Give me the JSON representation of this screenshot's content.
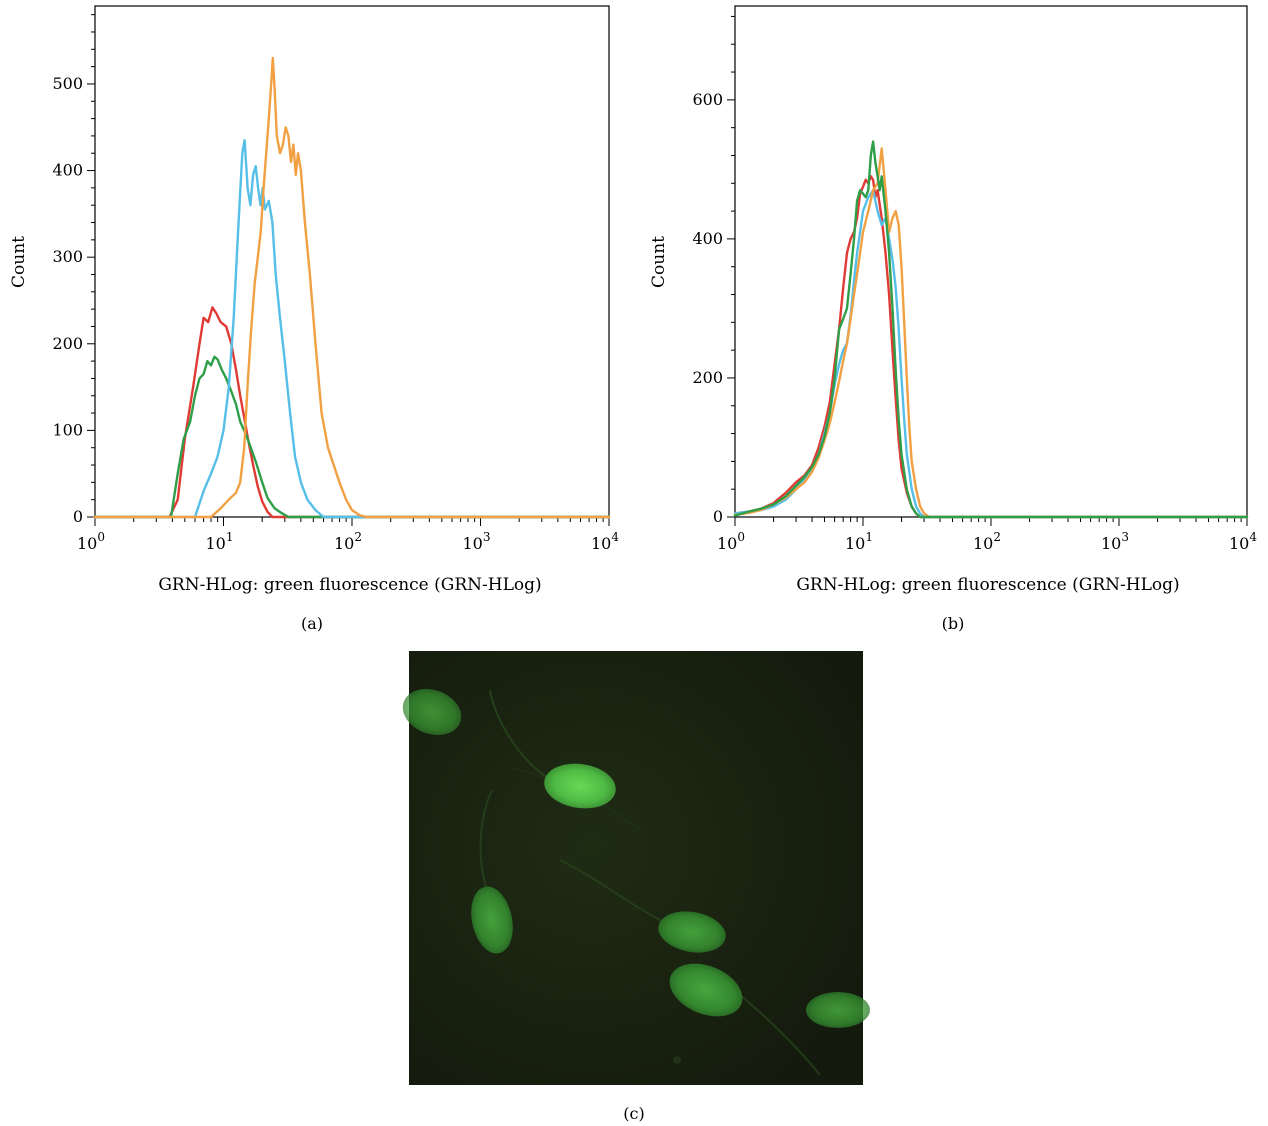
{
  "figure": {
    "panel_labels": {
      "a": "(a)",
      "b": "(b)",
      "c": "(c)"
    }
  },
  "series_colors": {
    "red": "#e03a34",
    "green": "#2f9e49",
    "blue": "#56bfe8",
    "orange": "#f2a142"
  },
  "microscopy": {
    "description_icon": "fluorescent-cells-image",
    "background_color": "#17200f",
    "cell_color": "#3fa23c"
  },
  "chart_data": [
    {
      "type": "line",
      "panel": "(a)",
      "xlabel": "GRN-HLog: green fluorescence (GRN-HLog)",
      "ylabel": "Count",
      "xscale": "log",
      "xlim": [
        1,
        10000
      ],
      "ylim": [
        0,
        590
      ],
      "x_ticks": [
        "0",
        "1",
        "2",
        "3",
        "4"
      ],
      "y_ticks": [
        0,
        100,
        200,
        300,
        400,
        500
      ],
      "grid": false,
      "series": [
        {
          "color_key": "red",
          "points": [
            [
              1,
              0
            ],
            [
              3.8,
              0
            ],
            [
              4.4,
              20
            ],
            [
              5,
              90
            ],
            [
              5.8,
              150
            ],
            [
              6.5,
              200
            ],
            [
              7,
              230
            ],
            [
              7.6,
              225
            ],
            [
              8.2,
              242
            ],
            [
              8.8,
              235
            ],
            [
              9.5,
              225
            ],
            [
              10.5,
              220
            ],
            [
              11.5,
              200
            ],
            [
              12.5,
              170
            ],
            [
              13.5,
              140
            ],
            [
              14.5,
              115
            ],
            [
              15.5,
              90
            ],
            [
              17,
              60
            ],
            [
              18.5,
              35
            ],
            [
              20,
              18
            ],
            [
              22,
              6
            ],
            [
              24,
              0
            ],
            [
              10000,
              0
            ]
          ]
        },
        {
          "color_key": "green",
          "points": [
            [
              1,
              0
            ],
            [
              3.9,
              0
            ],
            [
              4.4,
              50
            ],
            [
              4.9,
              90
            ],
            [
              5.5,
              110
            ],
            [
              6,
              140
            ],
            [
              6.5,
              160
            ],
            [
              7,
              165
            ],
            [
              7.5,
              180
            ],
            [
              8,
              175
            ],
            [
              8.5,
              185
            ],
            [
              9,
              182
            ],
            [
              9.7,
              170
            ],
            [
              10.5,
              160
            ],
            [
              11.5,
              145
            ],
            [
              12.5,
              130
            ],
            [
              13.5,
              110
            ],
            [
              15,
              95
            ],
            [
              16.5,
              78
            ],
            [
              18,
              62
            ],
            [
              20,
              40
            ],
            [
              22,
              22
            ],
            [
              25,
              10
            ],
            [
              28,
              5
            ],
            [
              32,
              0
            ],
            [
              10000,
              0
            ]
          ]
        },
        {
          "color_key": "blue",
          "points": [
            [
              1,
              0
            ],
            [
              6,
              0
            ],
            [
              7,
              30
            ],
            [
              8,
              50
            ],
            [
              9,
              70
            ],
            [
              10,
              100
            ],
            [
              11,
              150
            ],
            [
              12,
              230
            ],
            [
              13,
              330
            ],
            [
              14,
              420
            ],
            [
              14.6,
              435
            ],
            [
              15.4,
              380
            ],
            [
              16.2,
              360
            ],
            [
              17,
              395
            ],
            [
              17.8,
              405
            ],
            [
              18.6,
              380
            ],
            [
              19.4,
              360
            ],
            [
              20.2,
              380
            ],
            [
              21,
              355
            ],
            [
              22.5,
              365
            ],
            [
              24,
              340
            ],
            [
              25.5,
              280
            ],
            [
              27.5,
              230
            ],
            [
              30,
              180
            ],
            [
              33,
              120
            ],
            [
              36,
              70
            ],
            [
              40,
              40
            ],
            [
              45,
              20
            ],
            [
              52,
              8
            ],
            [
              60,
              0
            ],
            [
              10000,
              0
            ]
          ]
        },
        {
          "color_key": "orange",
          "points": [
            [
              1,
              0
            ],
            [
              8,
              0
            ],
            [
              9.5,
              10
            ],
            [
              11,
              20
            ],
            [
              12.5,
              28
            ],
            [
              13.5,
              40
            ],
            [
              14.5,
              80
            ],
            [
              15.5,
              160
            ],
            [
              16.5,
              220
            ],
            [
              17.5,
              270
            ],
            [
              18.5,
              300
            ],
            [
              19.5,
              330
            ],
            [
              20.5,
              380
            ],
            [
              21.5,
              420
            ],
            [
              22.5,
              460
            ],
            [
              23.5,
              500
            ],
            [
              24.2,
              530
            ],
            [
              25,
              495
            ],
            [
              26,
              440
            ],
            [
              27.5,
              420
            ],
            [
              29,
              430
            ],
            [
              30.5,
              450
            ],
            [
              32,
              440
            ],
            [
              33.5,
              410
            ],
            [
              35,
              430
            ],
            [
              36.5,
              395
            ],
            [
              38,
              420
            ],
            [
              40,
              400
            ],
            [
              43,
              340
            ],
            [
              47,
              280
            ],
            [
              52,
              200
            ],
            [
              58,
              120
            ],
            [
              65,
              80
            ],
            [
              72,
              60
            ],
            [
              80,
              40
            ],
            [
              90,
              20
            ],
            [
              100,
              8
            ],
            [
              115,
              2
            ],
            [
              130,
              0
            ],
            [
              10000,
              0
            ]
          ]
        }
      ]
    },
    {
      "type": "line",
      "panel": "(b)",
      "xlabel": "GRN-HLog: green fluorescence (GRN-HLog)",
      "ylabel": "Count",
      "xscale": "log",
      "xlim": [
        1,
        10000
      ],
      "ylim": [
        0,
        735
      ],
      "x_ticks": [
        "0",
        "1",
        "2",
        "3",
        "4"
      ],
      "y_ticks": [
        0,
        200,
        400,
        600
      ],
      "grid": false,
      "series": [
        {
          "color_key": "red",
          "points": [
            [
              1,
              5
            ],
            [
              1.3,
              8
            ],
            [
              1.6,
              12
            ],
            [
              2,
              20
            ],
            [
              2.5,
              35
            ],
            [
              3,
              50
            ],
            [
              3.5,
              60
            ],
            [
              4,
              75
            ],
            [
              4.5,
              100
            ],
            [
              5,
              130
            ],
            [
              5.5,
              165
            ],
            [
              6,
              220
            ],
            [
              6.5,
              270
            ],
            [
              7,
              330
            ],
            [
              7.5,
              380
            ],
            [
              8,
              400
            ],
            [
              8.5,
              410
            ],
            [
              9,
              430
            ],
            [
              9.5,
              465
            ],
            [
              10,
              475
            ],
            [
              10.5,
              485
            ],
            [
              11,
              480
            ],
            [
              11.5,
              490
            ],
            [
              12,
              485
            ],
            [
              12.5,
              460
            ],
            [
              13,
              470
            ],
            [
              14,
              430
            ],
            [
              15,
              380
            ],
            [
              16,
              320
            ],
            [
              17,
              240
            ],
            [
              18,
              170
            ],
            [
              19,
              110
            ],
            [
              20,
              70
            ],
            [
              22,
              35
            ],
            [
              24,
              15
            ],
            [
              26,
              5
            ],
            [
              28,
              0
            ],
            [
              10000,
              0
            ]
          ]
        },
        {
          "color_key": "blue",
          "points": [
            [
              1,
              5
            ],
            [
              1.3,
              8
            ],
            [
              1.6,
              10
            ],
            [
              2,
              15
            ],
            [
              2.5,
              25
            ],
            [
              3,
              40
            ],
            [
              3.5,
              55
            ],
            [
              4,
              70
            ],
            [
              4.5,
              90
            ],
            [
              5,
              120
            ],
            [
              5.5,
              150
            ],
            [
              6,
              190
            ],
            [
              6.5,
              220
            ],
            [
              7,
              240
            ],
            [
              7.5,
              250
            ],
            [
              8,
              290
            ],
            [
              8.5,
              340
            ],
            [
              9,
              380
            ],
            [
              9.5,
              410
            ],
            [
              10,
              440
            ],
            [
              11,
              460
            ],
            [
              12,
              470
            ],
            [
              12.5,
              455
            ],
            [
              13,
              440
            ],
            [
              14,
              420
            ],
            [
              15,
              430
            ],
            [
              16,
              400
            ],
            [
              17,
              370
            ],
            [
              18,
              330
            ],
            [
              19,
              270
            ],
            [
              20,
              200
            ],
            [
              21,
              140
            ],
            [
              22,
              90
            ],
            [
              24,
              40
            ],
            [
              26,
              15
            ],
            [
              28,
              5
            ],
            [
              30,
              0
            ],
            [
              10000,
              0
            ]
          ]
        },
        {
          "color_key": "orange",
          "points": [
            [
              1,
              3
            ],
            [
              1.3,
              6
            ],
            [
              1.6,
              10
            ],
            [
              2,
              18
            ],
            [
              2.5,
              28
            ],
            [
              3,
              40
            ],
            [
              3.5,
              50
            ],
            [
              4,
              65
            ],
            [
              4.5,
              85
            ],
            [
              5,
              110
            ],
            [
              5.5,
              135
            ],
            [
              6,
              165
            ],
            [
              6.5,
              195
            ],
            [
              7,
              225
            ],
            [
              7.5,
              250
            ],
            [
              8,
              285
            ],
            [
              8.5,
              320
            ],
            [
              9,
              350
            ],
            [
              9.5,
              380
            ],
            [
              10,
              410
            ],
            [
              11,
              440
            ],
            [
              12,
              470
            ],
            [
              13,
              480
            ],
            [
              14,
              530
            ],
            [
              15,
              470
            ],
            [
              16,
              410
            ],
            [
              17,
              430
            ],
            [
              18,
              440
            ],
            [
              19,
              420
            ],
            [
              20,
              360
            ],
            [
              21,
              280
            ],
            [
              22,
              200
            ],
            [
              23,
              130
            ],
            [
              24,
              80
            ],
            [
              26,
              40
            ],
            [
              28,
              15
            ],
            [
              30,
              5
            ],
            [
              33,
              0
            ],
            [
              10000,
              0
            ]
          ]
        },
        {
          "color_key": "green",
          "points": [
            [
              1,
              2
            ],
            [
              1.3,
              8
            ],
            [
              1.6,
              12
            ],
            [
              2,
              18
            ],
            [
              2.5,
              30
            ],
            [
              3,
              45
            ],
            [
              3.5,
              58
            ],
            [
              4,
              72
            ],
            [
              4.5,
              90
            ],
            [
              5,
              115
            ],
            [
              5.5,
              150
            ],
            [
              6,
              200
            ],
            [
              6.5,
              270
            ],
            [
              7,
              285
            ],
            [
              7.5,
              300
            ],
            [
              8,
              350
            ],
            [
              8.5,
              400
            ],
            [
              9,
              455
            ],
            [
              9.5,
              470
            ],
            [
              10,
              465
            ],
            [
              10.5,
              460
            ],
            [
              11,
              470
            ],
            [
              11.5,
              520
            ],
            [
              12,
              540
            ],
            [
              12.5,
              510
            ],
            [
              13,
              490
            ],
            [
              13.5,
              470
            ],
            [
              14,
              490
            ],
            [
              15,
              440
            ],
            [
              16,
              380
            ],
            [
              17,
              300
            ],
            [
              18,
              210
            ],
            [
              19,
              140
            ],
            [
              20,
              90
            ],
            [
              22,
              40
            ],
            [
              24,
              15
            ],
            [
              26,
              5
            ],
            [
              28,
              0
            ],
            [
              10000,
              0
            ]
          ]
        }
      ]
    }
  ]
}
